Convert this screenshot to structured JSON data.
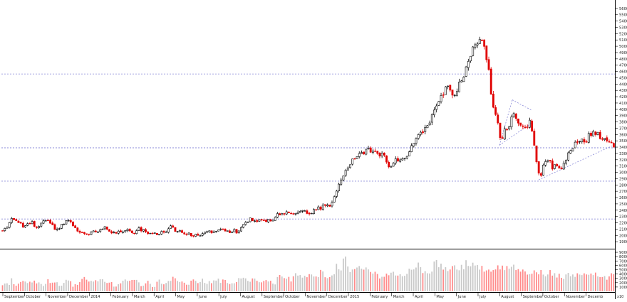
{
  "chart_data": {
    "type": "candlestick",
    "price_axis": {
      "range": [
        1800,
        5700
      ],
      "ticks": [
        1900,
        2000,
        2100,
        2200,
        2300,
        2400,
        2500,
        2600,
        2700,
        2800,
        2900,
        3000,
        3100,
        3200,
        3300,
        3400,
        3500,
        3600,
        3700,
        3800,
        3900,
        4000,
        4100,
        4200,
        4300,
        4400,
        4500,
        4600,
        4700,
        4800,
        4900,
        5000,
        5100,
        5200,
        5300,
        5400,
        5500,
        5600
      ],
      "tick_labels": [
        "1900",
        "2000",
        "2100",
        "2200",
        "2300",
        "2400",
        "2500",
        "2600",
        "2700",
        "2800",
        "2900",
        "3000",
        "3100",
        "3200",
        "3300",
        "3400",
        "3500",
        "3600",
        "3700",
        "3800",
        "3900",
        "4000",
        "4100",
        "4200",
        "4300",
        "4400",
        "4500",
        "4600",
        "4700",
        "4800",
        "4900",
        "5000",
        "5100",
        "5200",
        "5300",
        "5400",
        "5500",
        "5600"
      ]
    },
    "volume_axis": {
      "range": [
        0,
        95000
      ],
      "ticks": [
        10000,
        20000,
        30000,
        40000,
        50000,
        60000,
        70000,
        80000,
        90000
      ],
      "tick_labels": [
        "10000",
        "20000",
        "30000",
        "40000",
        "50000",
        "60000",
        "70000",
        "80000",
        "90000"
      ],
      "unit_label": "x10"
    },
    "months": [
      "September",
      "October",
      "November",
      "December",
      "2014",
      "February",
      "March",
      "April",
      "May",
      "June",
      "July",
      "August",
      "September",
      "October",
      "November",
      "December",
      "2015",
      "February",
      "March",
      "April",
      "May",
      "June",
      "July",
      "August",
      "September",
      "October",
      "November",
      "Decemb"
    ],
    "price_path": [
      [
        0,
        2070
      ],
      [
        4,
        2120
      ],
      [
        9,
        2170
      ],
      [
        13,
        2260
      ],
      [
        18,
        2210
      ],
      [
        22,
        2230
      ],
      [
        27,
        2160
      ],
      [
        31,
        2150
      ],
      [
        36,
        2190
      ],
      [
        40,
        2210
      ],
      [
        45,
        2150
      ],
      [
        49,
        2110
      ],
      [
        54,
        2220
      ],
      [
        59,
        2240
      ],
      [
        63,
        2230
      ],
      [
        68,
        2180
      ],
      [
        72,
        2120
      ],
      [
        76,
        2080
      ],
      [
        80,
        2100
      ],
      [
        85,
        2200
      ],
      [
        89,
        2230
      ],
      [
        94,
        2220
      ],
      [
        98,
        2140
      ],
      [
        103,
        2120
      ],
      [
        107,
        2060
      ],
      [
        112,
        2040
      ],
      [
        116,
        2060
      ],
      [
        121,
        2010
      ],
      [
        125,
        2080
      ],
      [
        130,
        2040
      ],
      [
        134,
        2050
      ],
      [
        139,
        2100
      ],
      [
        143,
        2160
      ],
      [
        147,
        2080
      ],
      [
        152,
        2060
      ],
      [
        156,
        2060
      ],
      [
        160,
        2020
      ],
      [
        164,
        2100
      ],
      [
        169,
        2030
      ],
      [
        173,
        2070
      ],
      [
        178,
        2100
      ],
      [
        182,
        2040
      ],
      [
        187,
        2060
      ],
      [
        191,
        2110
      ],
      [
        195,
        2080
      ],
      [
        200,
        2060
      ],
      [
        205,
        2020
      ],
      [
        209,
        2040
      ],
      [
        213,
        2020
      ],
      [
        218,
        2020
      ],
      [
        222,
        2050
      ],
      [
        227,
        2040
      ],
      [
        231,
        2100
      ],
      [
        235,
        2150
      ],
      [
        240,
        2100
      ],
      [
        244,
        2050
      ],
      [
        248,
        2090
      ],
      [
        252,
        2060
      ],
      [
        257,
        2000
      ],
      [
        262,
        2020
      ],
      [
        266,
        2000
      ],
      [
        271,
        2030
      ],
      [
        275,
        2000
      ],
      [
        280,
        2030
      ],
      [
        284,
        2030
      ],
      [
        288,
        2060
      ],
      [
        293,
        2040
      ],
      [
        298,
        2050
      ],
      [
        302,
        2090
      ],
      [
        307,
        2090
      ],
      [
        311,
        2080
      ],
      [
        316,
        2050
      ],
      [
        320,
        2060
      ],
      [
        325,
        2090
      ],
      [
        329,
        2050
      ],
      [
        334,
        2100
      ],
      [
        339,
        2230
      ],
      [
        343,
        2240
      ],
      [
        347,
        2250
      ],
      [
        352,
        2230
      ],
      [
        356,
        2240
      ],
      [
        361,
        2250
      ],
      [
        365,
        2270
      ],
      [
        369,
        2240
      ],
      [
        374,
        2240
      ],
      [
        379,
        2230
      ],
      [
        383,
        2330
      ],
      [
        387,
        2320
      ],
      [
        392,
        2340
      ],
      [
        396,
        2380
      ],
      [
        401,
        2360
      ],
      [
        405,
        2350
      ],
      [
        410,
        2360
      ],
      [
        414,
        2370
      ],
      [
        419,
        2380
      ],
      [
        423,
        2400
      ],
      [
        428,
        2360
      ],
      [
        432,
        2340
      ],
      [
        437,
        2390
      ],
      [
        441,
        2420
      ],
      [
        446,
        2440
      ],
      [
        450,
        2470
      ],
      [
        455,
        2460
      ],
      [
        459,
        2450
      ],
      [
        464,
        2540
      ],
      [
        468,
        2720
      ],
      [
        472,
        2840
      ],
      [
        477,
        2880
      ],
      [
        481,
        3010
      ],
      [
        486,
        3060
      ],
      [
        490,
        3200
      ],
      [
        494,
        3240
      ],
      [
        499,
        3260
      ],
      [
        503,
        3290
      ],
      [
        508,
        3340
      ],
      [
        513,
        3380
      ],
      [
        517,
        3300
      ],
      [
        521,
        3320
      ],
      [
        526,
        3330
      ],
      [
        530,
        3240
      ],
      [
        534,
        3320
      ],
      [
        539,
        3130
      ],
      [
        543,
        3100
      ],
      [
        548,
        3150
      ],
      [
        552,
        3210
      ],
      [
        557,
        3200
      ],
      [
        561,
        3220
      ],
      [
        565,
        3240
      ],
      [
        570,
        3340
      ],
      [
        574,
        3390
      ],
      [
        579,
        3500
      ],
      [
        583,
        3600
      ],
      [
        588,
        3640
      ],
      [
        592,
        3720
      ],
      [
        597,
        3760
      ],
      [
        601,
        3880
      ],
      [
        605,
        3970
      ],
      [
        610,
        4120
      ],
      [
        614,
        4210
      ],
      [
        619,
        4290
      ],
      [
        623,
        4360
      ],
      [
        628,
        4310
      ],
      [
        632,
        4200
      ],
      [
        637,
        4330
      ],
      [
        641,
        4430
      ],
      [
        646,
        4500
      ],
      [
        650,
        4690
      ],
      [
        655,
        4870
      ],
      [
        659,
        4960
      ],
      [
        664,
        5050
      ],
      [
        668,
        5140
      ],
      [
        673,
        5040
      ],
      [
        677,
        4950
      ],
      [
        682,
        4580
      ],
      [
        686,
        4130
      ],
      [
        690,
        4020
      ],
      [
        695,
        3760
      ],
      [
        699,
        3450
      ],
      [
        704,
        3710
      ],
      [
        708,
        3690
      ],
      [
        713,
        3820
      ],
      [
        717,
        3980
      ],
      [
        722,
        3790
      ],
      [
        726,
        3700
      ],
      [
        731,
        3740
      ],
      [
        736,
        3710
      ],
      [
        740,
        3850
      ],
      [
        745,
        3480
      ],
      [
        749,
        3120
      ],
      [
        754,
        2930
      ],
      [
        758,
        3120
      ],
      [
        763,
        3160
      ],
      [
        767,
        3170
      ],
      [
        772,
        3070
      ],
      [
        776,
        3120
      ],
      [
        781,
        3040
      ],
      [
        785,
        3110
      ],
      [
        790,
        3160
      ],
      [
        794,
        3340
      ],
      [
        799,
        3330
      ],
      [
        803,
        3450
      ],
      [
        808,
        3470
      ],
      [
        812,
        3510
      ],
      [
        817,
        3480
      ],
      [
        821,
        3570
      ],
      [
        825,
        3620
      ],
      [
        830,
        3610
      ],
      [
        835,
        3640
      ],
      [
        839,
        3550
      ],
      [
        844,
        3590
      ],
      [
        848,
        3490
      ],
      [
        853,
        3470
      ],
      [
        857,
        3420
      ]
    ],
    "volume_path": [
      [
        0,
        16500
      ],
      [
        4,
        22000
      ],
      [
        9,
        12000
      ],
      [
        13,
        29000
      ],
      [
        18,
        10000
      ],
      [
        22,
        15000
      ],
      [
        27,
        24000
      ],
      [
        31,
        27000
      ],
      [
        36,
        19000
      ],
      [
        40,
        23000
      ],
      [
        45,
        22000
      ],
      [
        49,
        19000
      ],
      [
        54,
        17000
      ],
      [
        59,
        9700
      ],
      [
        63,
        25000
      ],
      [
        68,
        20000
      ],
      [
        72,
        17000
      ],
      [
        76,
        20000
      ],
      [
        80,
        13000
      ],
      [
        85,
        16000
      ],
      [
        89,
        26000
      ],
      [
        94,
        29000
      ],
      [
        98,
        8200
      ],
      [
        103,
        18000
      ],
      [
        107,
        17000
      ],
      [
        112,
        28000
      ],
      [
        116,
        31000
      ],
      [
        121,
        21000
      ],
      [
        125,
        23000
      ],
      [
        130,
        25000
      ],
      [
        134,
        25000
      ],
      [
        139,
        25000
      ],
      [
        143,
        23000
      ],
      [
        147,
        17000
      ],
      [
        152,
        28000
      ],
      [
        156,
        10000
      ],
      [
        160,
        13000
      ],
      [
        164,
        18000
      ],
      [
        169,
        28000
      ],
      [
        173,
        24000
      ],
      [
        178,
        22000
      ],
      [
        182,
        30000
      ],
      [
        187,
        26000
      ],
      [
        191,
        24000
      ],
      [
        195,
        10000
      ],
      [
        200,
        15000
      ],
      [
        205,
        28000
      ],
      [
        209,
        12000
      ],
      [
        213,
        8400
      ],
      [
        218,
        28000
      ],
      [
        222,
        20000
      ],
      [
        227,
        16000
      ],
      [
        231,
        24000
      ],
      [
        235,
        25000
      ],
      [
        240,
        31000
      ],
      [
        244,
        27000
      ],
      [
        248,
        24000
      ],
      [
        252,
        22000
      ],
      [
        257,
        16000
      ],
      [
        262,
        15000
      ],
      [
        266,
        28000
      ],
      [
        271,
        27000
      ],
      [
        275,
        17000
      ],
      [
        280,
        29000
      ],
      [
        284,
        16000
      ],
      [
        288,
        21000
      ],
      [
        293,
        21000
      ],
      [
        298,
        24000
      ],
      [
        302,
        29000
      ],
      [
        307,
        20000
      ],
      [
        311,
        28000
      ],
      [
        316,
        20000
      ],
      [
        320,
        19000
      ],
      [
        325,
        18000
      ],
      [
        329,
        25000
      ],
      [
        334,
        30000
      ],
      [
        339,
        30000
      ],
      [
        343,
        22000
      ],
      [
        347,
        21000
      ],
      [
        352,
        31000
      ],
      [
        356,
        23000
      ],
      [
        361,
        20000
      ],
      [
        365,
        28000
      ],
      [
        369,
        28000
      ],
      [
        374,
        25000
      ],
      [
        379,
        16000
      ],
      [
        383,
        18000
      ],
      [
        387,
        36000
      ],
      [
        392,
        39000
      ],
      [
        396,
        27000
      ],
      [
        401,
        34000
      ],
      [
        405,
        24000
      ],
      [
        410,
        37000
      ],
      [
        414,
        38000
      ],
      [
        419,
        33000
      ],
      [
        423,
        38000
      ],
      [
        428,
        37000
      ],
      [
        432,
        38000
      ],
      [
        437,
        29000
      ],
      [
        441,
        33000
      ],
      [
        446,
        44000
      ],
      [
        450,
        45000
      ],
      [
        455,
        30000
      ],
      [
        459,
        29000
      ],
      [
        464,
        40000
      ],
      [
        468,
        58000
      ],
      [
        472,
        48000
      ],
      [
        477,
        64000
      ],
      [
        481,
        73000
      ],
      [
        486,
        40000
      ],
      [
        490,
        54000
      ],
      [
        494,
        47000
      ],
      [
        499,
        51000
      ],
      [
        503,
        51000
      ],
      [
        508,
        55000
      ],
      [
        513,
        45000
      ],
      [
        517,
        40000
      ],
      [
        521,
        42000
      ],
      [
        526,
        47000
      ],
      [
        530,
        30000
      ],
      [
        534,
        35000
      ],
      [
        539,
        43000
      ],
      [
        543,
        44000
      ],
      [
        548,
        42000
      ],
      [
        552,
        42000
      ],
      [
        557,
        37000
      ],
      [
        561,
        38000
      ],
      [
        565,
        37000
      ],
      [
        570,
        47000
      ],
      [
        574,
        49000
      ],
      [
        579,
        58000
      ],
      [
        583,
        58000
      ],
      [
        588,
        50000
      ],
      [
        592,
        45000
      ],
      [
        597,
        45000
      ],
      [
        601,
        44000
      ],
      [
        605,
        68000
      ],
      [
        610,
        61000
      ],
      [
        614,
        57000
      ],
      [
        619,
        56000
      ],
      [
        623,
        51000
      ],
      [
        628,
        52000
      ],
      [
        632,
        58000
      ],
      [
        637,
        48000
      ],
      [
        641,
        55000
      ],
      [
        646,
        55000
      ],
      [
        650,
        68000
      ],
      [
        655,
        67000
      ],
      [
        659,
        63000
      ],
      [
        664,
        64000
      ],
      [
        668,
        57000
      ],
      [
        673,
        56000
      ],
      [
        677,
        48000
      ],
      [
        682,
        49000
      ],
      [
        686,
        53000
      ],
      [
        690,
        59000
      ],
      [
        695,
        52000
      ],
      [
        699,
        60000
      ],
      [
        704,
        48000
      ],
      [
        708,
        54000
      ],
      [
        713,
        52000
      ],
      [
        717,
        54000
      ],
      [
        722,
        49000
      ],
      [
        726,
        46000
      ],
      [
        731,
        48000
      ],
      [
        736,
        35000
      ],
      [
        740,
        42000
      ],
      [
        745,
        54000
      ],
      [
        749,
        37000
      ],
      [
        754,
        50000
      ],
      [
        758,
        36000
      ],
      [
        763,
        40000
      ],
      [
        767,
        47000
      ],
      [
        772,
        37000
      ],
      [
        776,
        36000
      ],
      [
        781,
        36000
      ],
      [
        785,
        23000
      ],
      [
        790,
        44000
      ],
      [
        794,
        36000
      ],
      [
        799,
        35000
      ],
      [
        803,
        34000
      ],
      [
        808,
        38000
      ],
      [
        812,
        36000
      ],
      [
        817,
        45000
      ],
      [
        821,
        35000
      ],
      [
        825,
        38000
      ],
      [
        830,
        40000
      ],
      [
        835,
        35000
      ],
      [
        839,
        37000
      ],
      [
        844,
        39000
      ],
      [
        848,
        29000
      ],
      [
        853,
        38000
      ],
      [
        857,
        36000
      ]
    ],
    "horizontal_levels": [
      2260,
      2860,
      3390,
      4560
    ],
    "trendlines": [
      {
        "from": [
          699,
          3430
        ],
        "to": [
          717,
          4150
        ]
      },
      {
        "from": [
          717,
          4150
        ],
        "to": [
          745,
          3980
        ]
      },
      {
        "from": [
          699,
          3430
        ],
        "to": [
          745,
          3790
        ]
      },
      {
        "from": [
          754,
          2880
        ],
        "to": [
          857,
          3420
        ]
      }
    ],
    "up_color": "#000000",
    "down_color": "#e00000",
    "vol_up_color": "#c8c8c8",
    "vol_down_color": "#ff8a8a",
    "level_color": "#8a8ad8",
    "grid": false,
    "legend": "none"
  }
}
